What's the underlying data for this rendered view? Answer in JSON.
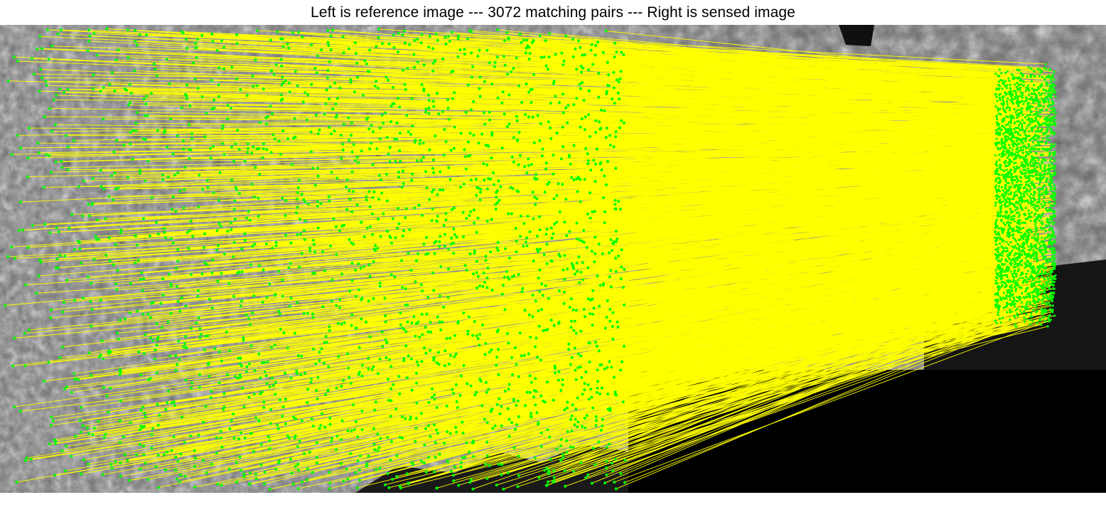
{
  "figure": {
    "title": "Left is reference image --- 3072 matching pairs --- Right is sensed image"
  },
  "colors": {
    "match_line": "#ffff00",
    "keypoint": "#00ff00",
    "imagery_dark": "#3a3a3a",
    "imagery_mid": "#7a7a7a",
    "imagery_light": "#b8b8b8",
    "water": "#080808"
  }
}
